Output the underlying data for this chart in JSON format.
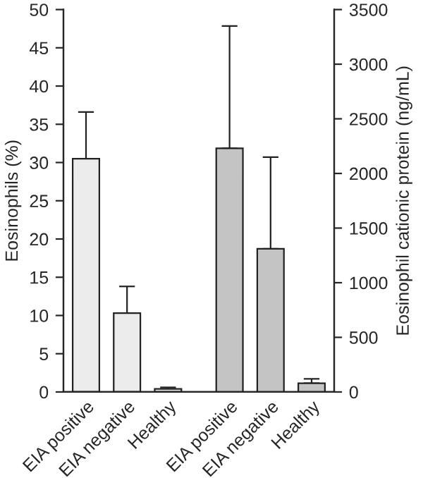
{
  "chart_data": {
    "type": "bar",
    "categories": [
      "EIA positive",
      "EIA negative",
      "Healthy",
      "EIA positive",
      "EIA negative",
      "Healthy"
    ],
    "ylabel": "Eosinophils (%)",
    "y2label": "Eosinophil cationic protein (ng/mL)",
    "series": [
      {
        "color": "#ececec",
        "values": [
          30.5,
          10.3,
          0.4,
          null,
          null,
          null
        ],
        "errors": [
          [
            30.5,
            36.6
          ],
          [
            10.3,
            13.8
          ],
          [
            0.4,
            0.6
          ],
          null,
          null,
          null
        ]
      },
      {
        "color": "#c4c4c4",
        "axis": "y2",
        "values": [
          null,
          null,
          null,
          2230,
          1310,
          80
        ],
        "errors": [
          null,
          null,
          null,
          [
            2230,
            3350
          ],
          [
            1310,
            2150
          ],
          [
            80,
            120
          ]
        ]
      }
    ],
    "ylim": [
      0,
      50
    ],
    "yticks": [
      0,
      5,
      10,
      15,
      20,
      25,
      30,
      35,
      40,
      45,
      50
    ],
    "y2lim": [
      0,
      3500
    ],
    "y2ticks": [
      0,
      500,
      1000,
      1500,
      2000,
      2500,
      3000,
      3500
    ],
    "grid": false,
    "legend": false
  }
}
